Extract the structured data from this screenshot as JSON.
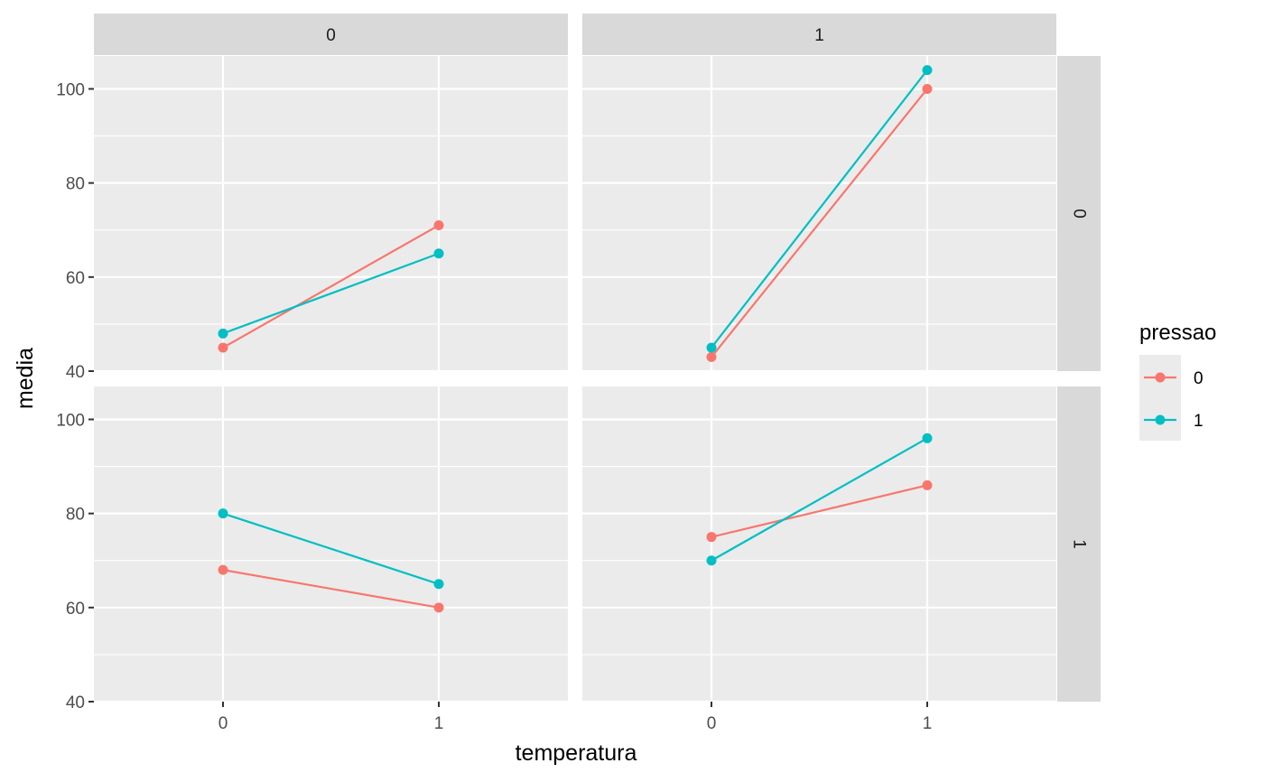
{
  "chart_data": {
    "type": "line",
    "xlabel": "temperatura",
    "ylabel": "media",
    "legend": {
      "title": "pressao",
      "position": "right"
    },
    "x_categories": [
      "0",
      "1"
    ],
    "ylim": [
      40,
      107
    ],
    "y_ticks": [
      40,
      60,
      80,
      100
    ],
    "grid": true,
    "facet_columns": [
      "0",
      "1"
    ],
    "facet_rows": [
      "0",
      "1"
    ],
    "colors": {
      "0": "#F8766D",
      "1": "#00BFC4"
    },
    "series_names": [
      "0",
      "1"
    ],
    "panels": [
      {
        "col": "0",
        "row": "0",
        "series": [
          {
            "name": "0",
            "values": [
              45,
              71
            ]
          },
          {
            "name": "1",
            "values": [
              48,
              65
            ]
          }
        ]
      },
      {
        "col": "1",
        "row": "0",
        "series": [
          {
            "name": "0",
            "values": [
              43,
              100
            ]
          },
          {
            "name": "1",
            "values": [
              45,
              104
            ]
          }
        ]
      },
      {
        "col": "0",
        "row": "1",
        "series": [
          {
            "name": "0",
            "values": [
              68,
              60
            ]
          },
          {
            "name": "1",
            "values": [
              80,
              65
            ]
          }
        ]
      },
      {
        "col": "1",
        "row": "1",
        "series": [
          {
            "name": "0",
            "values": [
              75,
              86
            ]
          },
          {
            "name": "1",
            "values": [
              70,
              96
            ]
          }
        ]
      }
    ]
  }
}
